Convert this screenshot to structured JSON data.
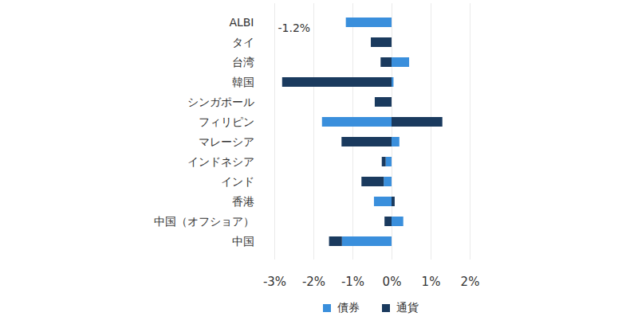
{
  "chart_data": {
    "type": "bar",
    "orientation": "horizontal",
    "stacked": true,
    "grid": true,
    "legend": "bottom",
    "categories": [
      "ALBI",
      "タイ",
      "台湾",
      "韓国",
      "シンガポール",
      "フィリピン",
      "マレーシア",
      "インドネシア",
      "インド",
      "香港",
      "中国（オフショア）",
      "中国"
    ],
    "series": [
      {
        "name": "債券",
        "color": "#3a8fdc",
        "values": [
          -1.17,
          0,
          0.45,
          0.05,
          0,
          -1.78,
          0.2,
          -0.15,
          -0.2,
          -0.45,
          0.3,
          -1.27
        ]
      },
      {
        "name": "通貨",
        "color": "#1a3a5e",
        "values": [
          0,
          -0.53,
          -0.28,
          -2.8,
          -0.43,
          1.3,
          -1.28,
          -0.1,
          -0.57,
          0.08,
          -0.18,
          -0.33
        ]
      }
    ],
    "xlim": [
      -3,
      2
    ],
    "xticks": [
      {
        "value": -3,
        "label": "-3%"
      },
      {
        "value": -2,
        "label": "-2%"
      },
      {
        "value": -1,
        "label": "-1%"
      },
      {
        "value": 0,
        "label": "0%"
      },
      {
        "value": 1,
        "label": "1%"
      },
      {
        "value": 2,
        "label": "2%"
      }
    ],
    "annotation": "-1.2%"
  }
}
